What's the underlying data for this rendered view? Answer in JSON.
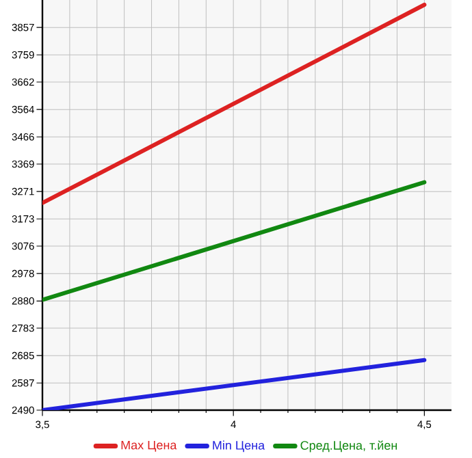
{
  "chart_data": {
    "type": "line",
    "x": [
      3.5,
      4.5
    ],
    "series": [
      {
        "name": "Max Цена",
        "color": "#dd2222",
        "values": [
          3230,
          3938
        ]
      },
      {
        "name": "Min Цена",
        "color": "#2222dd",
        "values": [
          2490,
          2669
        ]
      },
      {
        "name": "Сред.Цена, т.йен",
        "color": "#118811",
        "values": [
          2884,
          3304
        ]
      }
    ],
    "xlim": [
      3.5,
      4.571
    ],
    "ylim": [
      2490,
      3955
    ],
    "xticks": [
      {
        "value": 3.5,
        "label": "3,5"
      },
      4,
      {
        "value": 4.5,
        "label": "4,5"
      }
    ],
    "yticks": [
      2490,
      2587,
      2685,
      2783,
      2880,
      2978,
      3076,
      3173,
      3271,
      3369,
      3466,
      3564,
      3662,
      3759,
      3857
    ],
    "grid": true,
    "legend": "bottom",
    "marker": "none",
    "line_style": "solid"
  }
}
